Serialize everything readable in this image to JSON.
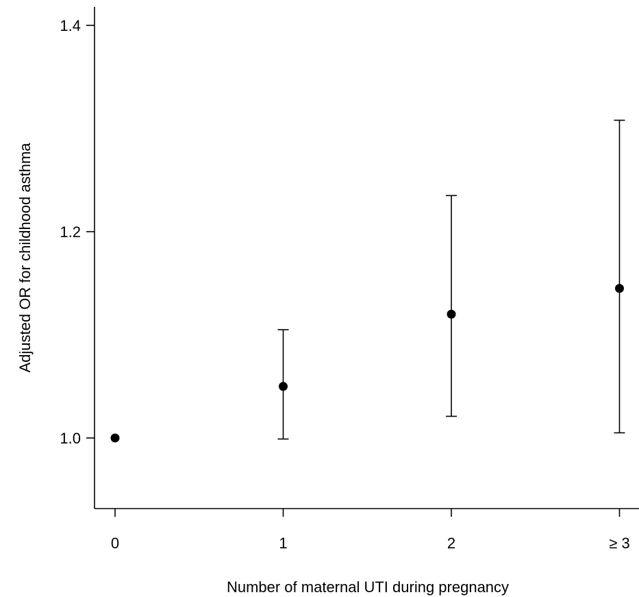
{
  "chart_data": {
    "type": "scatter",
    "title": "",
    "xlabel": "Number of maternal UTI during pregnancy",
    "ylabel": "Adjusted OR for childhood asthma",
    "categories": [
      "0",
      "1",
      "2",
      "≥ 3"
    ],
    "values": [
      1.0,
      1.05,
      1.12,
      1.145
    ],
    "ci_lower": [
      1.0,
      0.999,
      1.021,
      1.005
    ],
    "ci_upper": [
      1.0,
      1.105,
      1.235,
      1.308
    ],
    "yticks": [
      "1.0",
      "1.2",
      "1.4"
    ],
    "ytick_values": [
      1.0,
      1.2,
      1.4
    ],
    "ylim": [
      0.933,
      1.42
    ],
    "grid": false,
    "legend": "none",
    "point_color": "#000000",
    "line_color": "#000000"
  }
}
